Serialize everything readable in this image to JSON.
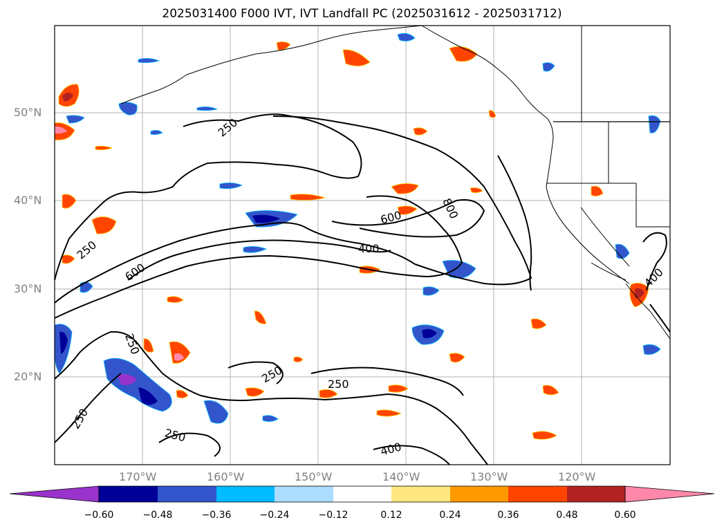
{
  "title": "2025031400 F000 IVT, IVT Landfall PC (2025031612 - 2025031712)",
  "lat_labels": [
    "50°N",
    "40°N",
    "30°N",
    "20°N"
  ],
  "lon_labels": [
    "170°W",
    "160°W",
    "150°W",
    "140°W",
    "130°W",
    "120°W"
  ],
  "contour_labels": [
    "250",
    "250",
    "250",
    "250",
    "250",
    "250",
    "250",
    "400",
    "400",
    "400",
    "600",
    "600",
    "800"
  ],
  "colorbar": {
    "colors": [
      "#9933cc",
      "#000099",
      "#3355cc",
      "#00bbff",
      "#aaddff",
      "#ffffff",
      "#ffe680",
      "#ff9900",
      "#ff4400",
      "#b22222",
      "#ff88aa"
    ],
    "ticks": [
      "−0.60",
      "−0.48",
      "−0.36",
      "−0.24",
      "−0.12",
      "0.12",
      "0.24",
      "0.36",
      "0.48",
      "0.60"
    ]
  }
}
